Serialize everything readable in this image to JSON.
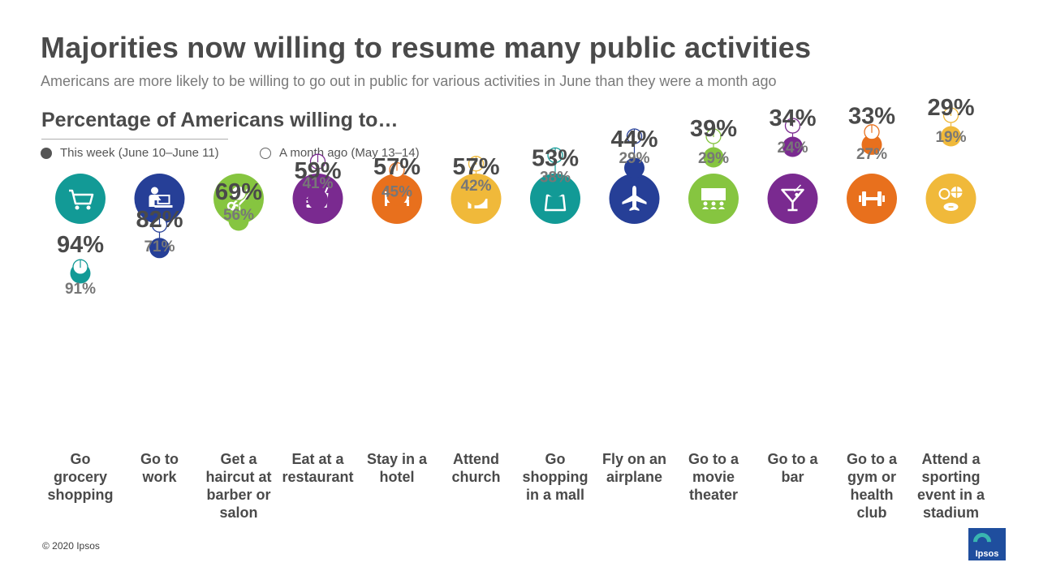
{
  "title": "Majorities now willing to resume many public activities",
  "subtitle": "Americans are more likely to be willing to go out in public for various activities in June than they were a month ago",
  "footer": "© 2020 Ipsos",
  "logo_text": "Ipsos",
  "chart_data": {
    "type": "scatter",
    "title": "Percentage of Americans willing to…",
    "ylim": [
      0,
      100
    ],
    "legend_position": "top-left",
    "categories": [
      {
        "label": "Go grocery shopping",
        "icon": "shopping-cart-icon",
        "color": "#129a96"
      },
      {
        "label": "Go to work",
        "icon": "person-at-desk-icon",
        "color": "#263f97"
      },
      {
        "label": "Get a haircut at barber or salon",
        "icon": "scissors-icon",
        "color": "#86c540"
      },
      {
        "label": "Eat at a restaurant",
        "icon": "burger-drink-icon",
        "color": "#7a2a90"
      },
      {
        "label": "Stay in a hotel",
        "icon": "bed-icon",
        "color": "#e8701d"
      },
      {
        "label": "Attend church",
        "icon": "church-icon",
        "color": "#f0b93a"
      },
      {
        "label": "Go shopping in a mall",
        "icon": "shopping-bag-icon",
        "color": "#129a96"
      },
      {
        "label": "Fly on an airplane",
        "icon": "airplane-icon",
        "color": "#263f97"
      },
      {
        "label": "Go to a movie theater",
        "icon": "movie-screen-icon",
        "color": "#86c540"
      },
      {
        "label": "Go to a bar",
        "icon": "cocktail-icon",
        "color": "#7a2a90"
      },
      {
        "label": "Go to a gym or health club",
        "icon": "dumbbell-icon",
        "color": "#e8701d"
      },
      {
        "label": "Attend a sporting event in a stadium",
        "icon": "sports-balls-icon",
        "color": "#f0b93a"
      }
    ],
    "series": [
      {
        "name": "This week (June 10–June 11)",
        "marker": "filled",
        "values": [
          94,
          82,
          69,
          59,
          57,
          57,
          53,
          44,
          39,
          34,
          33,
          29
        ]
      },
      {
        "name": "A month ago (May 13–14)",
        "marker": "open",
        "values": [
          91,
          71,
          56,
          41,
          45,
          42,
          38,
          29,
          29,
          24,
          27,
          19
        ]
      }
    ],
    "value_suffix": "%"
  }
}
